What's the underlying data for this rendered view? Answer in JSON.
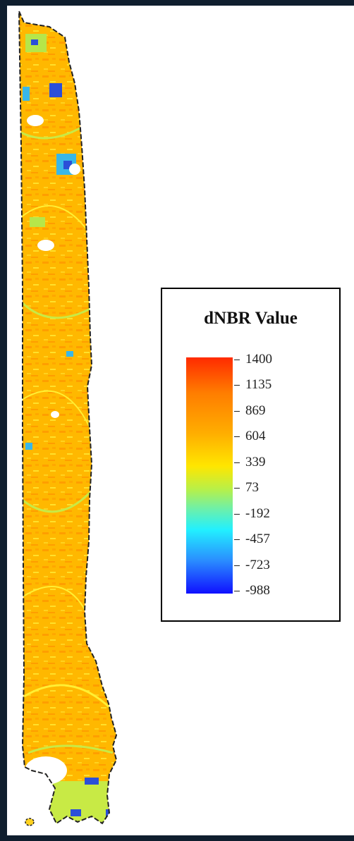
{
  "map": {
    "burn_area_colors": [
      "#ff9d00",
      "#ffb400",
      "#ffd21f",
      "#ffef33",
      "#c8ea45"
    ],
    "unburned_colors": [
      "#2b4fd8",
      "#39b7e8",
      "#ffffff"
    ]
  },
  "legend": {
    "title": "dNBR Value",
    "ticks": [
      {
        "label": "1400"
      },
      {
        "label": "1135"
      },
      {
        "label": "869"
      },
      {
        "label": "604"
      },
      {
        "label": "339"
      },
      {
        "label": "73"
      },
      {
        "label": "-192"
      },
      {
        "label": "-457"
      },
      {
        "label": "-723"
      },
      {
        "label": "-988"
      }
    ],
    "range": [
      -988,
      1400
    ]
  }
}
